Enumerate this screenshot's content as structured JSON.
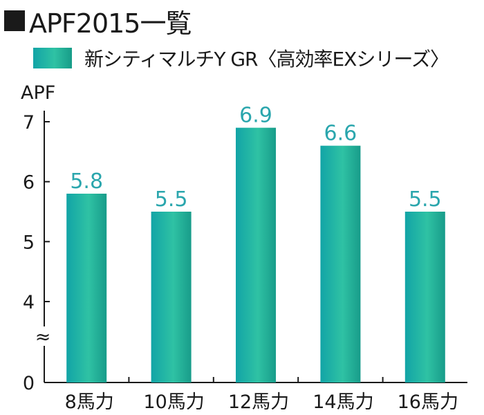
{
  "header": {
    "title": "APF2015一覧"
  },
  "legend": {
    "label": "新シティマルチY GR〈高効率EXシリーズ〉"
  },
  "chart_data": {
    "type": "bar",
    "title": "APF2015一覧",
    "ylabel": "APF",
    "xlabel": "",
    "categories": [
      "8馬力",
      "10馬力",
      "12馬力",
      "14馬力",
      "16馬力"
    ],
    "series": [
      {
        "name": "新シティマルチY GR〈高効率EXシリーズ〉",
        "values": [
          5.8,
          5.5,
          6.9,
          6.6,
          5.5
        ]
      }
    ],
    "value_labels": [
      "5.8",
      "5.5",
      "6.9",
      "6.6",
      "5.5"
    ],
    "yticks": [
      "0",
      "4",
      "5",
      "6",
      "7"
    ],
    "axis_break_symbol": "≈",
    "ylim": [
      4,
      7
    ],
    "axis_break": {
      "between": [
        0,
        4
      ]
    },
    "grid": false,
    "legend_position": "top-left",
    "colors": {
      "bar_light": "#2fc2a4",
      "bar_dark": "#12a4a6",
      "value_label": "#2aa6ad",
      "axis": "#1a1a1a"
    }
  }
}
